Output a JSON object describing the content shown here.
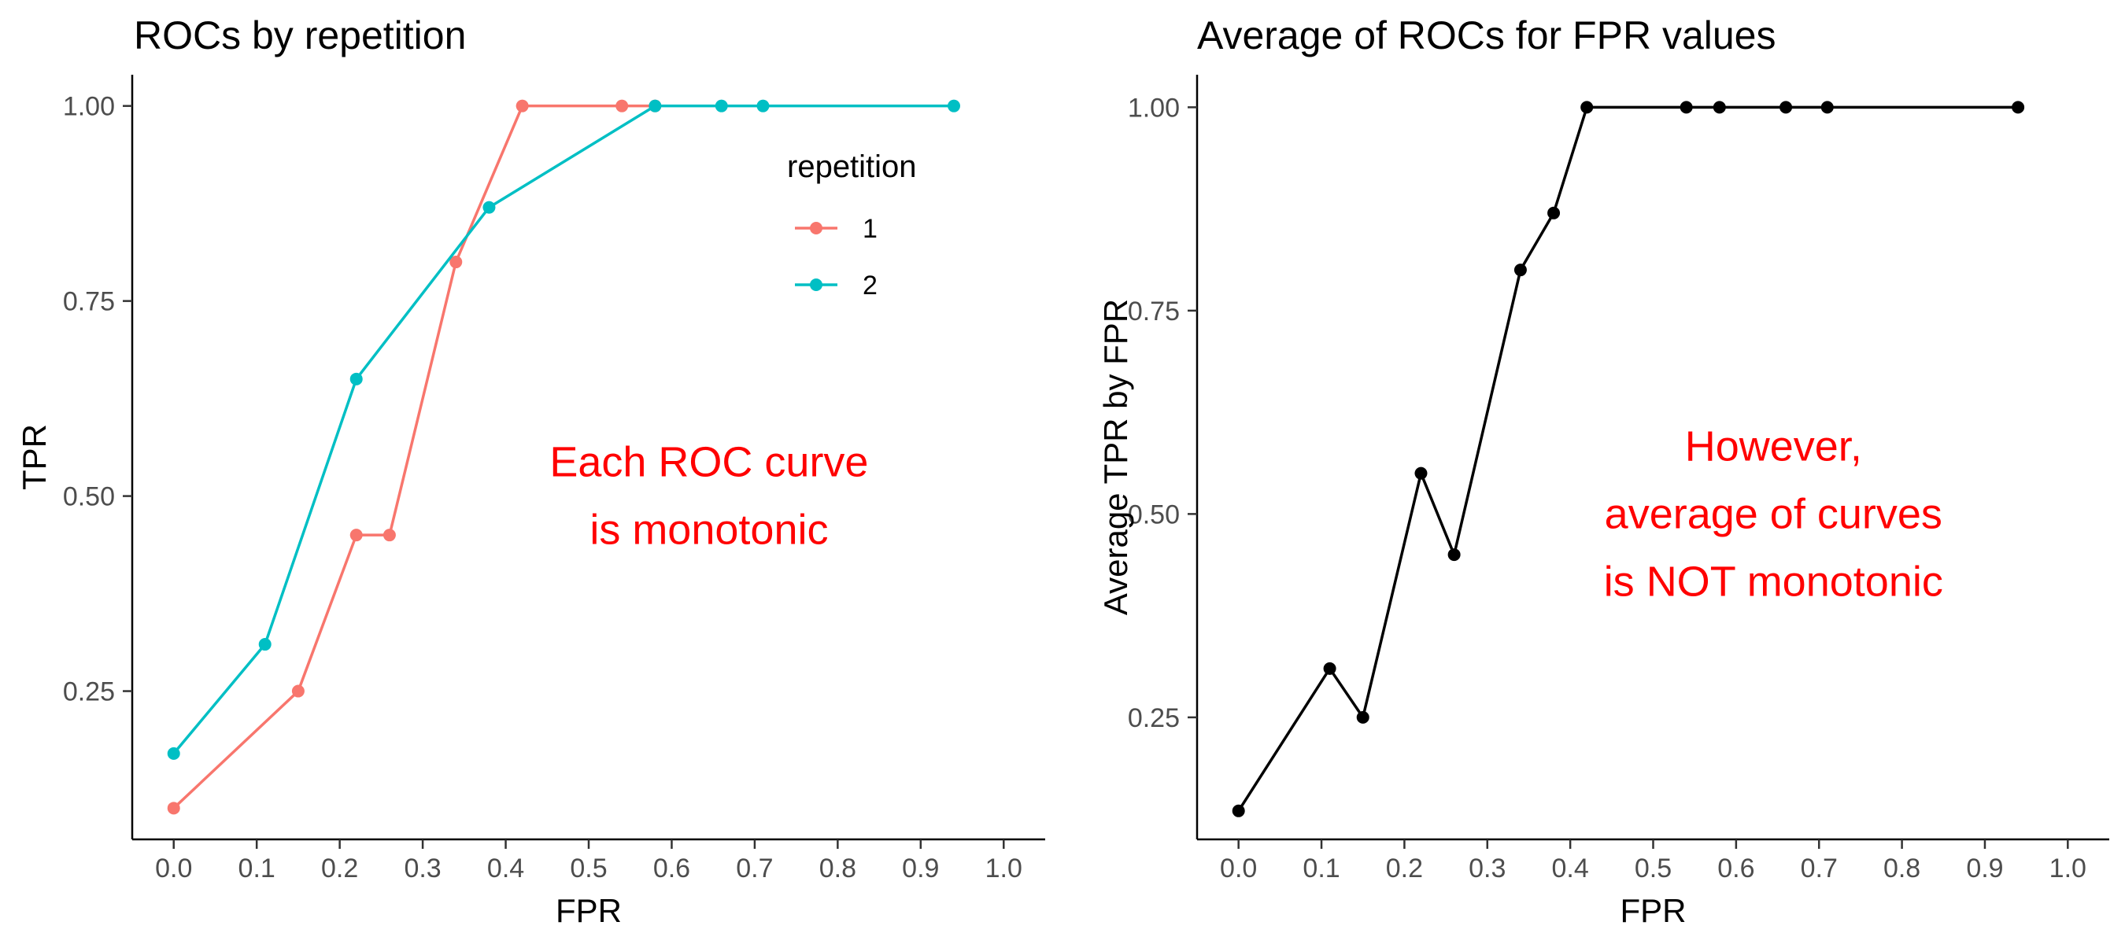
{
  "chart_data": [
    {
      "type": "line",
      "title": "ROCs by repetition",
      "xlabel": "FPR",
      "ylabel": "TPR",
      "xlim": [
        -0.05,
        1.05
      ],
      "ylim": [
        0.06,
        1.04
      ],
      "x_ticks": [
        0.0,
        0.1,
        0.2,
        0.3,
        0.4,
        0.5,
        0.6,
        0.7,
        0.8,
        0.9,
        1.0
      ],
      "x_tick_labels": [
        "0.0",
        "0.1",
        "0.2",
        "0.3",
        "0.4",
        "0.5",
        "0.6",
        "0.7",
        "0.8",
        "0.9",
        "1.0"
      ],
      "y_ticks": [
        0.25,
        0.5,
        0.75,
        1.0
      ],
      "y_tick_labels": [
        "0.25",
        "0.50",
        "0.75",
        "1.00"
      ],
      "grid": false,
      "legend": {
        "title": "repetition",
        "position": "top-right-inside",
        "entries": [
          "1",
          "2"
        ]
      },
      "annotation": {
        "lines": [
          "Each ROC curve",
          "is monotonic"
        ],
        "x": 0.645,
        "y": 0.5,
        "color": "#ff0000"
      },
      "series": [
        {
          "name": "1",
          "color": "#f8766d",
          "x": [
            0.0,
            0.15,
            0.22,
            0.26,
            0.34,
            0.42,
            0.54,
            0.58
          ],
          "y": [
            0.1,
            0.25,
            0.45,
            0.45,
            0.8,
            1.0,
            1.0,
            1.0
          ]
        },
        {
          "name": "2",
          "color": "#00bfc4",
          "x": [
            0.0,
            0.11,
            0.22,
            0.38,
            0.58,
            0.66,
            0.71,
            0.94
          ],
          "y": [
            0.17,
            0.31,
            0.65,
            0.87,
            1.0,
            1.0,
            1.0,
            1.0
          ]
        }
      ]
    },
    {
      "type": "line",
      "title": "Average of ROCs for FPR values",
      "xlabel": "FPR",
      "ylabel": "Average TPR by FPR",
      "xlim": [
        -0.05,
        1.05
      ],
      "ylim": [
        0.1,
        1.04
      ],
      "x_ticks": [
        0.0,
        0.1,
        0.2,
        0.3,
        0.4,
        0.5,
        0.6,
        0.7,
        0.8,
        0.9,
        1.0
      ],
      "x_tick_labels": [
        "0.0",
        "0.1",
        "0.2",
        "0.3",
        "0.4",
        "0.5",
        "0.6",
        "0.7",
        "0.8",
        "0.9",
        "1.0"
      ],
      "y_ticks": [
        0.25,
        0.5,
        0.75,
        1.0
      ],
      "y_tick_labels": [
        "0.25",
        "0.50",
        "0.75",
        "1.00"
      ],
      "grid": false,
      "annotation": {
        "lines": [
          "However,",
          "average of curves",
          "is NOT monotonic"
        ],
        "x": 0.645,
        "y": 0.5,
        "color": "#ff0000"
      },
      "series": [
        {
          "color": "#000000",
          "x": [
            0.0,
            0.11,
            0.15,
            0.22,
            0.26,
            0.34,
            0.38,
            0.42,
            0.54,
            0.58,
            0.66,
            0.71,
            0.94
          ],
          "y": [
            0.135,
            0.31,
            0.25,
            0.55,
            0.45,
            0.8,
            0.87,
            1.0,
            1.0,
            1.0,
            1.0,
            1.0,
            1.0
          ]
        }
      ]
    }
  ]
}
